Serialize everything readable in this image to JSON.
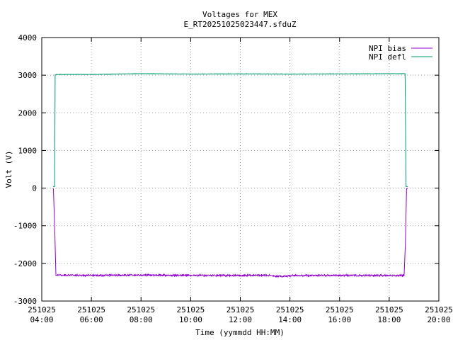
{
  "chart_data": {
    "type": "line",
    "title": "Voltages for MEX",
    "subtitle": "E_RT20251025023447.sfduZ",
    "xlabel": "Time (yymmdd HH:MM)",
    "ylabel": "Volt (V)",
    "x_ticks": [
      {
        "hour": 4,
        "date": "251025",
        "time": "04:00"
      },
      {
        "hour": 6,
        "date": "251025",
        "time": "06:00"
      },
      {
        "hour": 8,
        "date": "251025",
        "time": "08:00"
      },
      {
        "hour": 10,
        "date": "251025",
        "time": "10:00"
      },
      {
        "hour": 12,
        "date": "251025",
        "time": "12:00"
      },
      {
        "hour": 14,
        "date": "251025",
        "time": "14:00"
      },
      {
        "hour": 16,
        "date": "251025",
        "time": "16:00"
      },
      {
        "hour": 18,
        "date": "251025",
        "time": "18:00"
      },
      {
        "hour": 20,
        "date": "251025",
        "time": "20:00"
      }
    ],
    "xlim": [
      4,
      20
    ],
    "ylim": [
      -3000,
      4000
    ],
    "y_ticks": [
      4000,
      3000,
      2000,
      1000,
      0,
      -1000,
      -2000,
      -3000
    ],
    "grid": true,
    "legend_position": "top-right",
    "series": [
      {
        "name": "NPI bias",
        "color": "#9400d3",
        "x": [
          4.45,
          4.47,
          4.52,
          4.57,
          4.62,
          6.0,
          8.0,
          10.0,
          12.0,
          13.2,
          13.3,
          14.05,
          14.1,
          16.0,
          18.0,
          18.6,
          18.65,
          18.7,
          18.75
        ],
        "y": [
          -10,
          -30,
          -1000,
          -2320,
          -2310,
          -2320,
          -2310,
          -2320,
          -2320,
          -2315,
          -2340,
          -2340,
          -2320,
          -2320,
          -2320,
          -2320,
          -1500,
          -10,
          -10
        ],
        "noise": 40
      },
      {
        "name": "NPI defl",
        "color": "#009e73",
        "x": [
          4.45,
          4.52,
          4.54,
          4.6,
          6.0,
          8.0,
          10.0,
          12.0,
          14.0,
          16.0,
          18.0,
          18.6,
          18.64,
          18.68,
          18.75
        ],
        "y": [
          40,
          40,
          3010,
          3020,
          3020,
          3040,
          3030,
          3035,
          3030,
          3035,
          3040,
          3040,
          3040,
          40,
          40
        ],
        "noise": 8
      }
    ]
  }
}
